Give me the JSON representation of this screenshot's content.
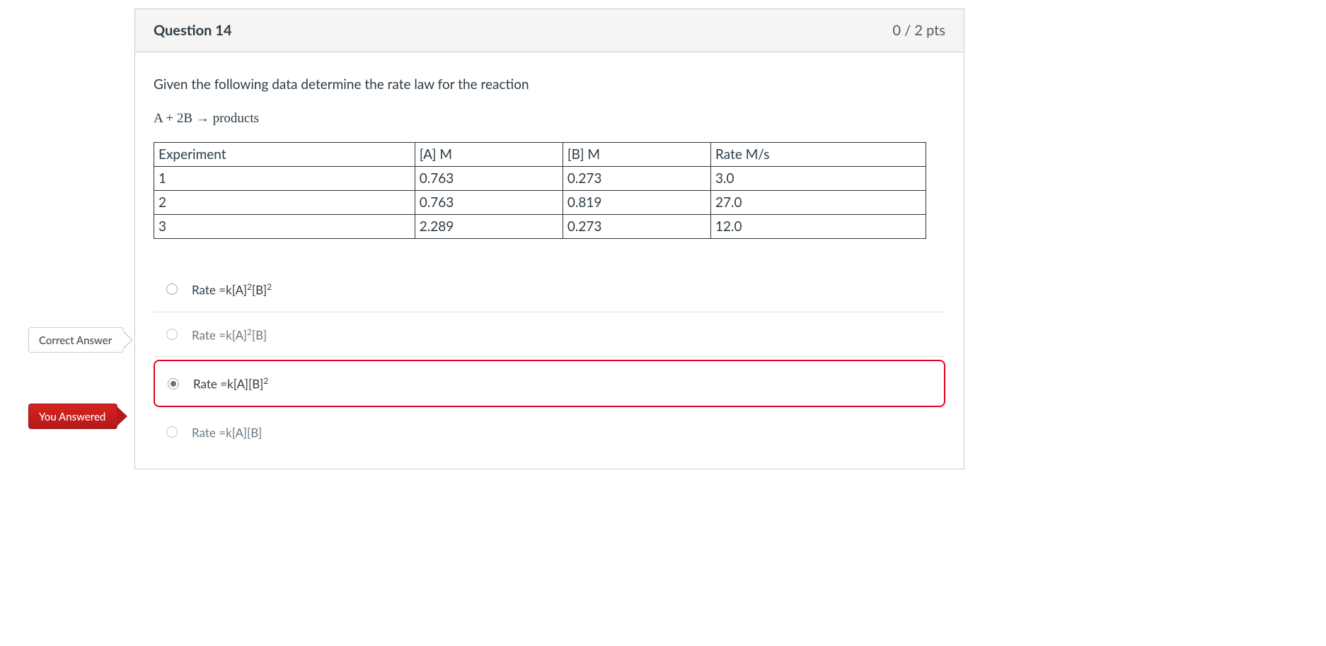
{
  "question": {
    "title": "Question 14",
    "points": "0 / 2 pts",
    "prompt": "Given the following data determine the rate law for the reaction",
    "equation_plain": "A + 2B → products"
  },
  "table": {
    "columns": [
      "Experiment",
      "[A] M",
      "[B] M",
      "Rate M/s"
    ],
    "rows": [
      [
        "1",
        "0.763",
        "0.273",
        "3.0"
      ],
      [
        "2",
        "0.763",
        "0.819",
        "27.0"
      ],
      [
        "3",
        "2.289",
        "0.273",
        "12.0"
      ]
    ],
    "border_color": "#333333",
    "cell_fontsize": 19
  },
  "answers": {
    "option_a": {
      "prefix": "Rate =k[A]",
      "supA": "2",
      "mid": "[B]",
      "supB": "2",
      "checked": false,
      "muted": false
    },
    "option_b": {
      "prefix": "Rate =k[A]",
      "supA": "2",
      "mid": "[B]",
      "supB": "",
      "checked": false,
      "muted": true
    },
    "option_c": {
      "prefix": "Rate =k[A][B]",
      "supA": "",
      "mid": "",
      "supB": "2",
      "checked": true,
      "muted": false
    },
    "option_d": {
      "prefix": "Rate =k[A][B]",
      "supA": "",
      "mid": "",
      "supB": "",
      "checked": false,
      "muted": true
    }
  },
  "flags": {
    "correct": "Correct Answer",
    "you": "You Answered"
  },
  "colors": {
    "header_bg": "#f5f5f5",
    "border": "#c7cdd1",
    "incorrect_outline": "#e0061f",
    "you_bg": "#c11e1e",
    "text": "#2d3b45"
  }
}
